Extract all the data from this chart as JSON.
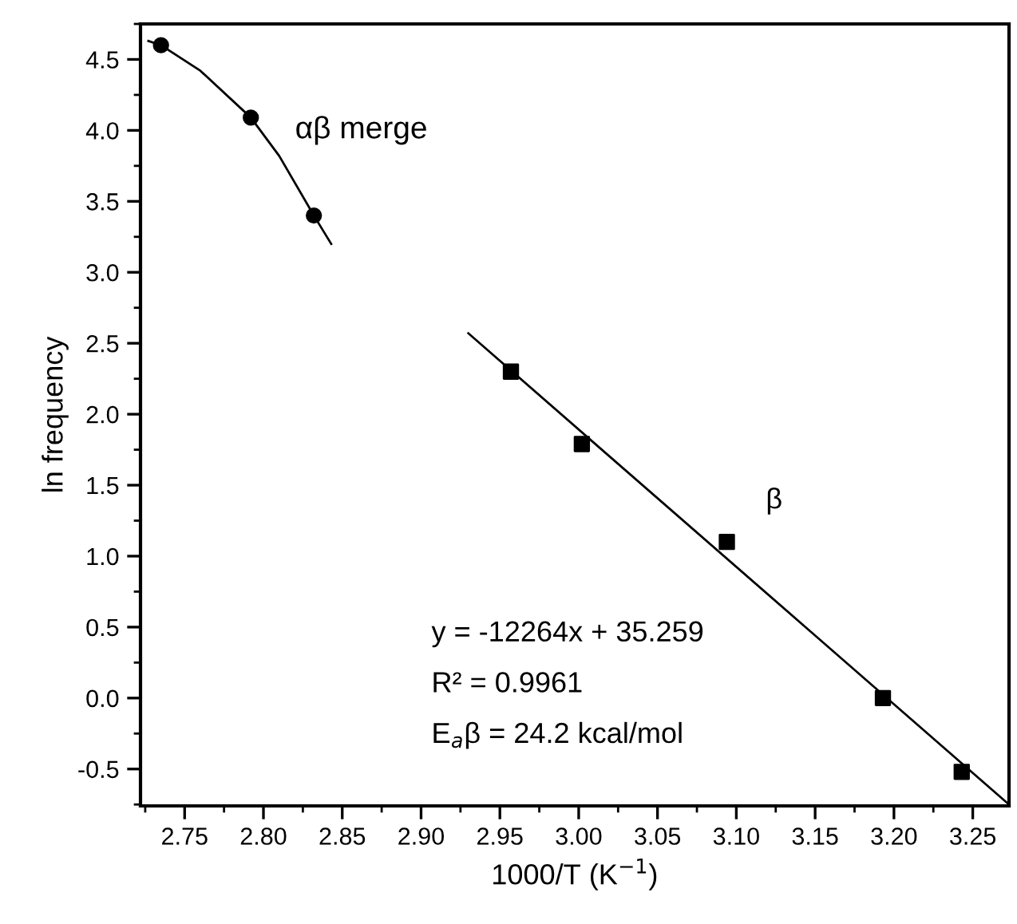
{
  "chart_data": {
    "type": "scatter",
    "xlabel": "1000/T (K$^{−1}$)",
    "ylabel": "ln frequency",
    "xlim": [
      2.722,
      3.273
    ],
    "ylim": [
      -0.76,
      4.75
    ],
    "xticks": [
      2.75,
      {
        "value": 2.8,
        "label": "2.80"
      },
      2.85,
      {
        "value": 2.9,
        "label": "2.90"
      },
      2.95,
      {
        "value": 3.0,
        "label": "3.00"
      },
      3.05,
      {
        "value": 3.1,
        "label": "3.10"
      },
      3.15,
      {
        "value": 3.2,
        "label": "3.20"
      },
      3.25
    ],
    "yticks": [
      -0.5,
      {
        "value": 0,
        "label": "0.0"
      },
      0.5,
      {
        "value": 1,
        "label": "1.0"
      },
      1.5,
      {
        "value": 2,
        "label": "2.0"
      },
      2.5,
      {
        "value": 3,
        "label": "3.0"
      },
      3.5,
      {
        "value": 4,
        "label": "4.0"
      },
      4.5
    ],
    "grid": false,
    "legend": false,
    "series": [
      {
        "marker": "circle",
        "color": "#000000",
        "x": [
          2.735,
          2.792,
          2.832
        ],
        "values": [
          4.6,
          4.09,
          3.4
        ]
      },
      {
        "type": "line",
        "marker": "none",
        "color": "#000000",
        "x": [
          2.727,
          2.735,
          2.76,
          2.792,
          2.81,
          2.832,
          2.843
        ],
        "values": [
          4.63,
          4.6,
          4.42,
          4.09,
          3.82,
          3.4,
          3.2
        ]
      },
      {
        "marker": "square",
        "color": "#000000",
        "x": [
          2.957,
          3.002,
          3.094,
          3.193,
          3.243
        ],
        "values": [
          2.3,
          1.79,
          1.1,
          0.0,
          -0.52
        ]
      },
      {
        "type": "line",
        "marker": "none",
        "color": "#000000",
        "x": [
          2.93,
          3.273
        ],
        "values": [
          2.57,
          -0.75
        ]
      }
    ],
    "annotations": [
      "αβ merge",
      "β",
      "y = -12264x + 35.259",
      "R² = 0.9961",
      "E$_{a}$β = 24.2 kcal/mol"
    ]
  }
}
